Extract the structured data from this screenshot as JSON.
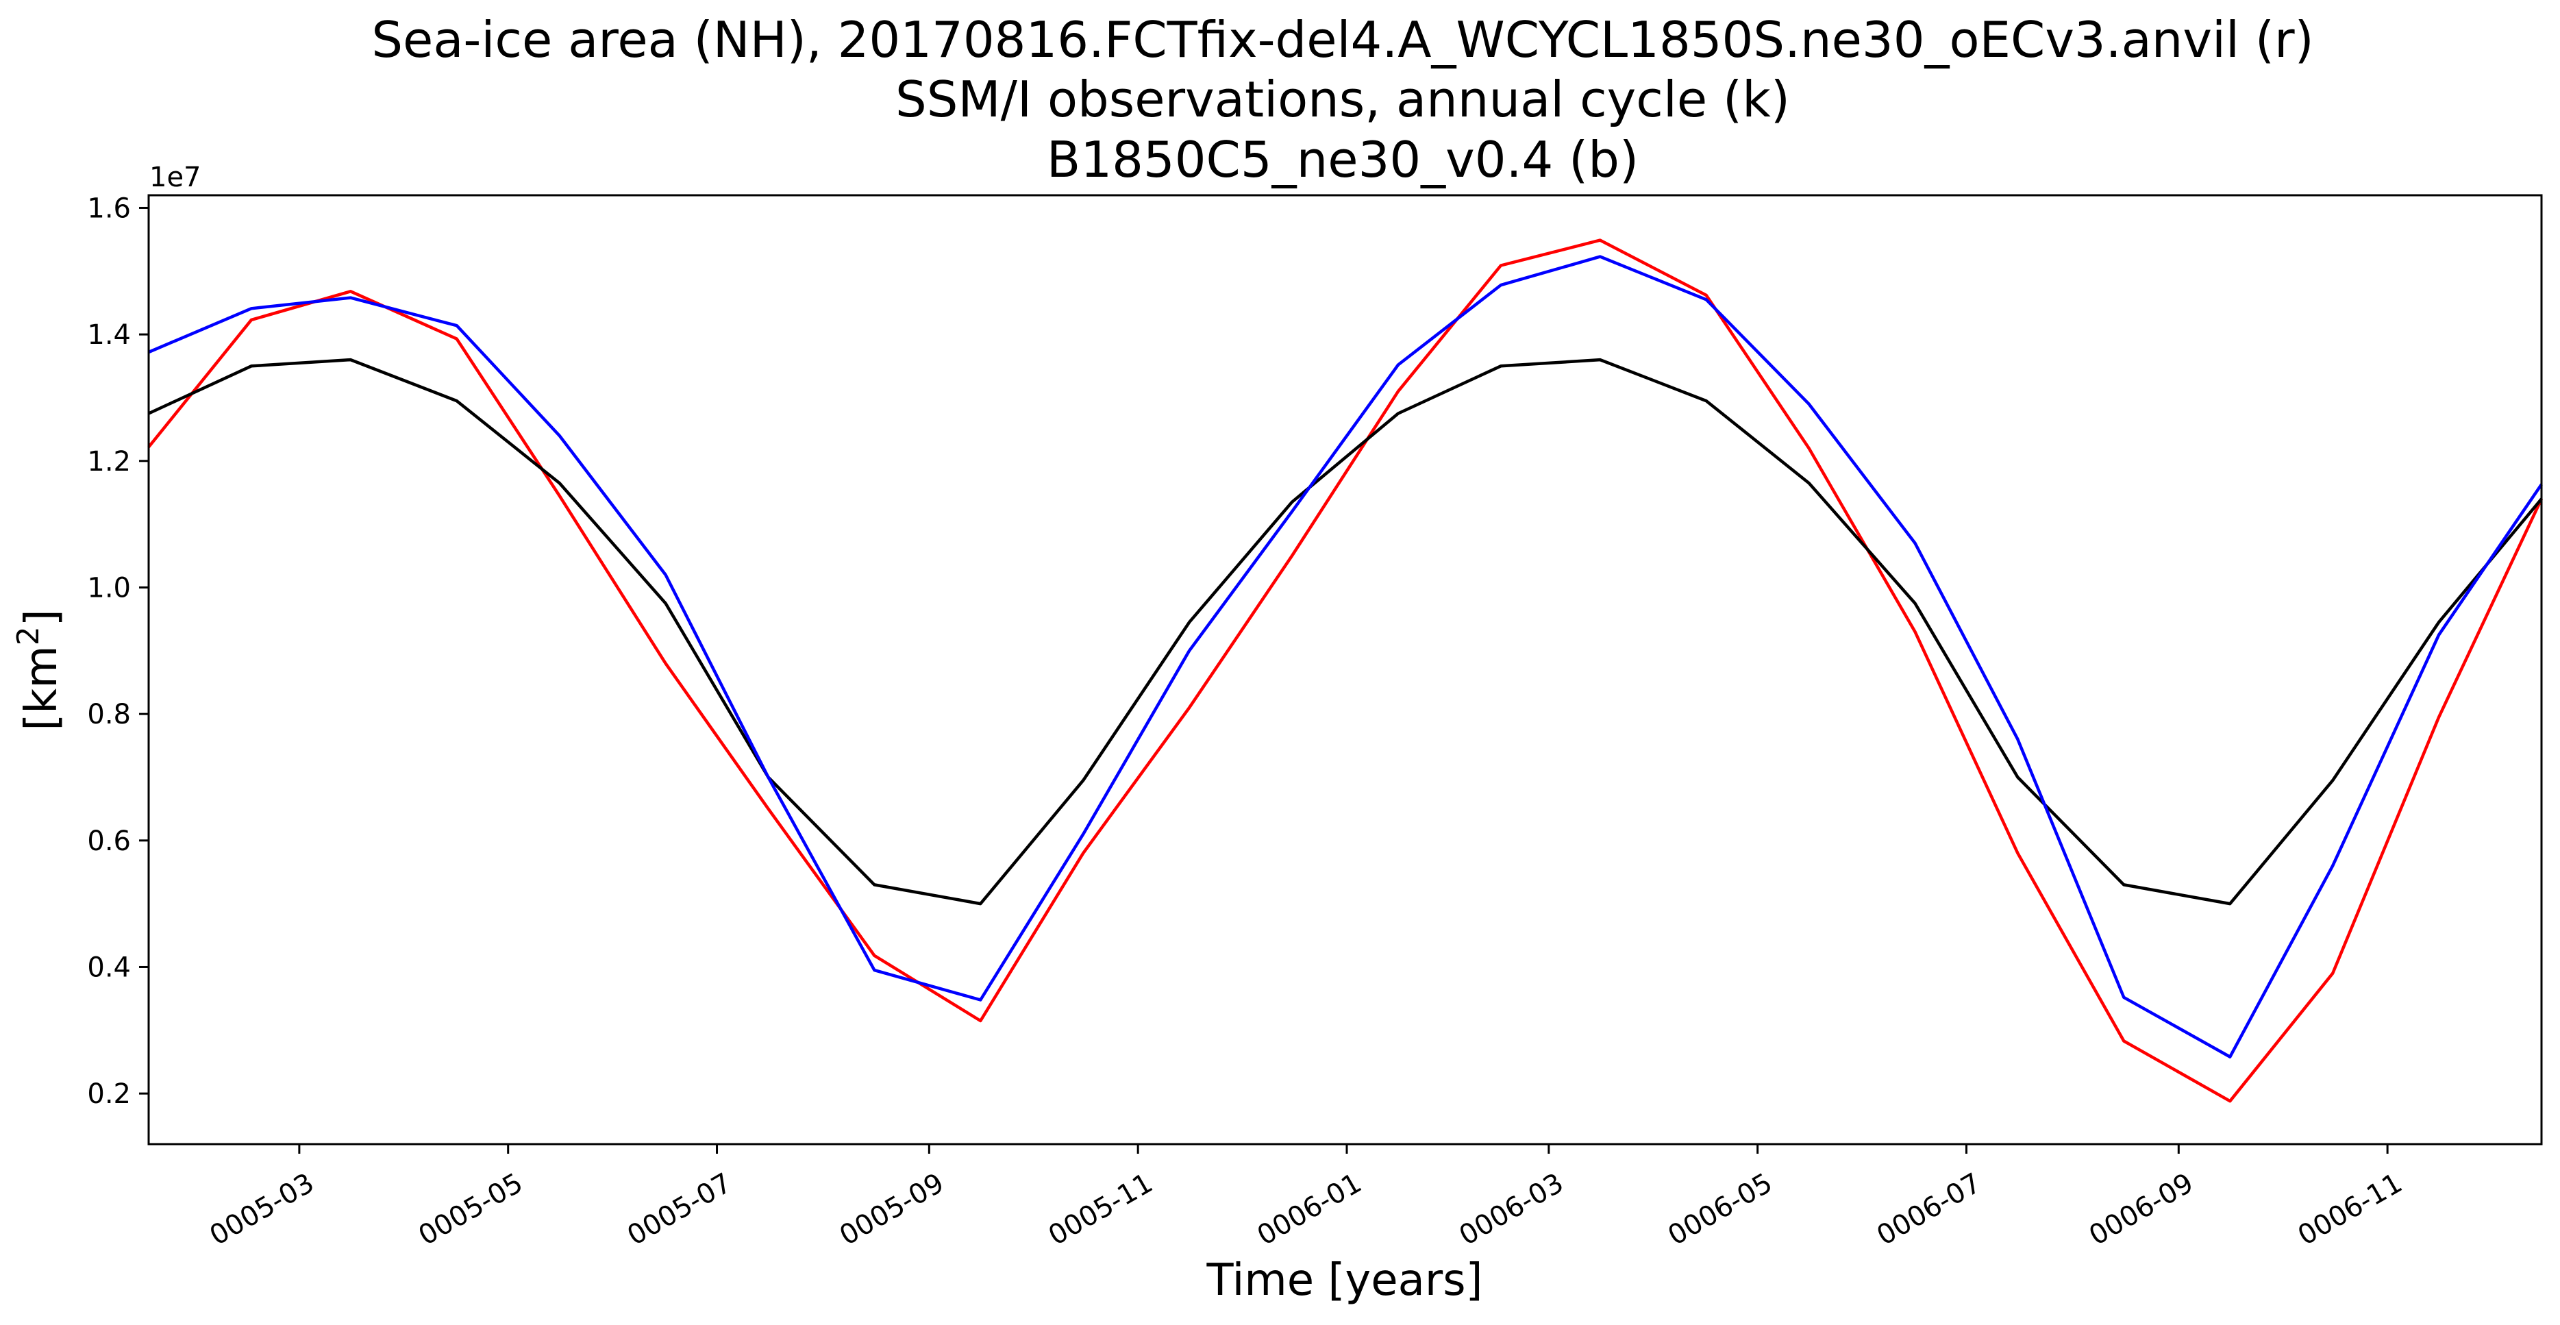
{
  "chart_data": {
    "type": "line",
    "title_lines": [
      "Sea-ice area (NH), 20170816.FCTfix-del4.A_WCYCL1850S.ne30_oECv3.anvil (r)",
      "SSM/I observations, annual cycle (k)",
      "B1850C5_ne30_v0.4 (b)"
    ],
    "xlabel": "Time [years]",
    "ylabel_base": "[km",
    "ylabel_sup": "2",
    "ylabel_end": "]",
    "y_offset_label": "1e7",
    "x_start": "0005-01-16",
    "x_end": "0006-12-16",
    "xlim": [
      "0005-01-16",
      "0006-12-16"
    ],
    "ylim": [
      1200000.0,
      16200000.0
    ],
    "y_ticks": [
      2000000.0,
      4000000.0,
      6000000.0,
      8000000.0,
      10000000.0,
      12000000.0,
      14000000.0,
      16000000.0
    ],
    "y_tick_labels": [
      "0.2",
      "0.4",
      "0.6",
      "0.8",
      "1.0",
      "1.2",
      "1.4",
      "1.6"
    ],
    "x_ticks": [
      "0005-03-01",
      "0005-05-01",
      "0005-07-01",
      "0005-09-01",
      "0005-11-01",
      "0006-01-01",
      "0006-03-01",
      "0006-05-01",
      "0006-07-01",
      "0006-09-01",
      "0006-11-01"
    ],
    "x_tick_labels": [
      "0005-03",
      "0005-05",
      "0005-07",
      "0005-09",
      "0005-11",
      "0006-01",
      "0006-03",
      "0006-05",
      "0006-07",
      "0006-09",
      "0006-11"
    ],
    "x": [
      "0005-01-16",
      "0005-02-15",
      "0005-03-16",
      "0005-04-16",
      "0005-05-16",
      "0005-06-16",
      "0005-07-16",
      "0005-08-16",
      "0005-09-16",
      "0005-10-16",
      "0005-11-16",
      "0005-12-16",
      "0006-01-16",
      "0006-02-15",
      "0006-03-16",
      "0006-04-16",
      "0006-05-16",
      "0006-06-16",
      "0006-07-16",
      "0006-08-16",
      "0006-09-16",
      "0006-10-16",
      "0006-11-16",
      "0006-12-16"
    ],
    "grid": false,
    "series": [
      {
        "color": "#ff0000",
        "values": [
          12220000.0,
          14230000.0,
          14680000.0,
          13930000.0,
          11450000.0,
          8800000.0,
          6500000.0,
          4180000.0,
          3150000.0,
          5800000.0,
          8100000.0,
          10500000.0,
          13100000.0,
          15090000.0,
          15490000.0,
          14620000.0,
          12200000.0,
          9300000.0,
          5800000.0,
          2830000.0,
          1880000.0,
          3900000.0,
          7950000.0,
          11400000.0
        ]
      },
      {
        "color": "#000000",
        "values": [
          12750000.0,
          13500000.0,
          13600000.0,
          12950000.0,
          11650000.0,
          9750000.0,
          7000000.0,
          5300000.0,
          5000000.0,
          6950000.0,
          9450000.0,
          11350000.0,
          12750000.0,
          13500000.0,
          13600000.0,
          12950000.0,
          11650000.0,
          9750000.0,
          7000000.0,
          5300000.0,
          5000000.0,
          6950000.0,
          9450000.0,
          11400000.0
        ]
      },
      {
        "color": "#0000ff",
        "values": [
          13720000.0,
          14410000.0,
          14580000.0,
          14140000.0,
          12400000.0,
          10200000.0,
          7000000.0,
          3950000.0,
          3480000.0,
          6100000.0,
          9000000.0,
          11200000.0,
          13520000.0,
          14780000.0,
          15230000.0,
          14550000.0,
          12900000.0,
          10700000.0,
          7600000.0,
          3520000.0,
          2580000.0,
          5600000.0,
          9250000.0,
          11630000.0
        ]
      }
    ]
  }
}
